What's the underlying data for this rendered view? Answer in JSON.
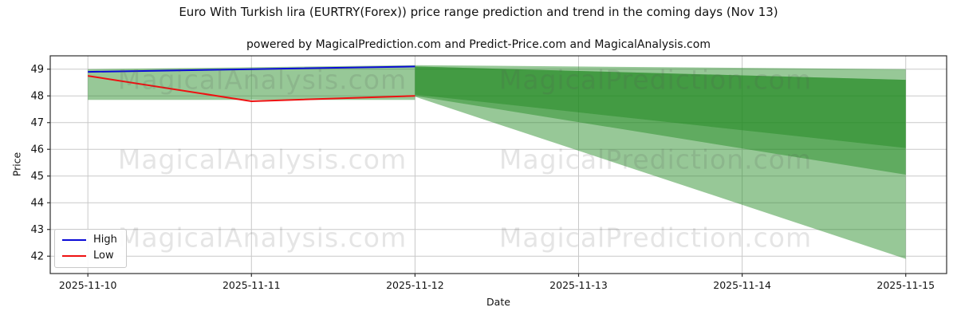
{
  "chart_data": {
    "type": "line",
    "title": "Euro With Turkish lira (EURTRY(Forex)) price range prediction and trend in the coming days (Nov 13)",
    "subtitle": "powered by MagicalPrediction.com and Predict-Price.com and MagicalAnalysis.com",
    "xlabel": "Date",
    "ylabel": "Price",
    "dates": [
      "2025-11-10",
      "2025-11-11",
      "2025-11-12",
      "2025-11-13",
      "2025-11-14",
      "2025-11-15"
    ],
    "y_ticks": [
      42,
      43,
      44,
      45,
      46,
      47,
      48,
      49
    ],
    "ylim": [
      41.35,
      49.5
    ],
    "x_margin_days": [
      0.23,
      0.25
    ],
    "grid": true,
    "series": [
      {
        "name": "High",
        "color": "#0a0ad6",
        "x": [
          0,
          1,
          2
        ],
        "values": [
          48.9,
          49.0,
          49.1
        ]
      },
      {
        "name": "Low",
        "color": "#ee1111",
        "x": [
          0,
          1,
          2
        ],
        "values": [
          48.75,
          47.8,
          48.0
        ]
      }
    ],
    "history_band": {
      "x": [
        0,
        1,
        2
      ],
      "top": [
        49.0,
        49.07,
        49.15
      ],
      "bottom": [
        47.85,
        47.85,
        47.85
      ]
    },
    "forecast_bands": [
      {
        "x": [
          2,
          5
        ],
        "top": [
          49.15,
          49.0
        ],
        "bottom": [
          48.05,
          46.05
        ]
      },
      {
        "x": [
          2,
          5
        ],
        "top": [
          49.1,
          48.6
        ],
        "bottom": [
          48.0,
          45.05
        ]
      },
      {
        "x": [
          2,
          5
        ],
        "top": [
          49.1,
          48.6
        ],
        "bottom": [
          47.97,
          41.9
        ]
      }
    ],
    "band_fill_color": "rgba(34,139,34,0.47)",
    "grid_color": "#c9c9c9",
    "axis_color": "#2e2e2e",
    "legend": {
      "position": "lower left",
      "items": [
        {
          "label": "High",
          "color": "#0a0ad6"
        },
        {
          "label": "Low",
          "color": "#ee1111"
        }
      ]
    },
    "watermarks": {
      "left_text": "MagicalAnalysis.com",
      "right_text": "MagicalPrediction.com"
    }
  }
}
